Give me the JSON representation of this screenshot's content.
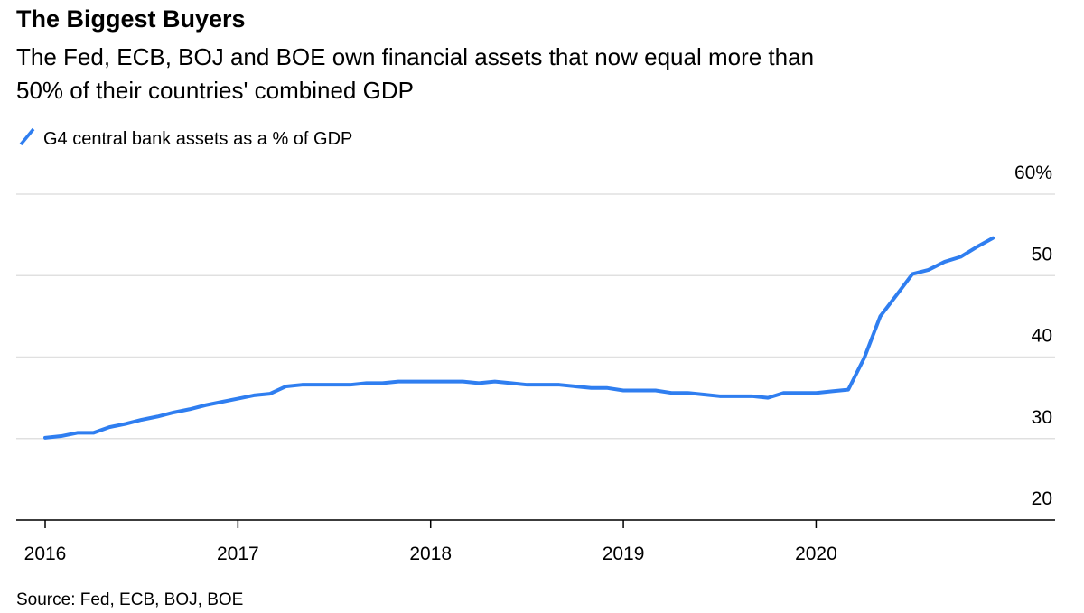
{
  "chart_data": {
    "type": "line",
    "title": "The Biggest Buyers",
    "subtitle": [
      "The Fed, ECB, BOJ and BOE own financial assets that now equal more than",
      "50% of their countries' combined GDP"
    ],
    "source": "Source: Fed, ECB, BOJ, BOE",
    "x": [
      2016,
      2016.083,
      2016.167,
      2016.25,
      2016.333,
      2016.417,
      2016.5,
      2016.583,
      2016.667,
      2016.75,
      2016.833,
      2016.917,
      2017,
      2017.083,
      2017.167,
      2017.25,
      2017.333,
      2017.417,
      2017.5,
      2017.583,
      2017.667,
      2017.75,
      2017.833,
      2017.917,
      2018,
      2018.083,
      2018.167,
      2018.25,
      2018.333,
      2018.417,
      2018.5,
      2018.583,
      2018.667,
      2018.75,
      2018.833,
      2018.917,
      2019,
      2019.083,
      2019.167,
      2019.25,
      2019.333,
      2019.417,
      2019.5,
      2019.583,
      2019.667,
      2019.75,
      2019.833,
      2019.917,
      2020,
      2020.083,
      2020.167,
      2020.25,
      2020.333,
      2020.417,
      2020.5,
      2020.583,
      2020.667,
      2020.75,
      2020.833,
      2020.917
    ],
    "series": [
      {
        "name": "G4 central bank assets as a % of GDP",
        "color": "#2f7ef0",
        "values": [
          30.1,
          30.3,
          30.7,
          30.7,
          31.4,
          31.8,
          32.3,
          32.7,
          33.2,
          33.6,
          34.1,
          34.5,
          34.9,
          35.3,
          35.5,
          36.4,
          36.6,
          36.6,
          36.6,
          36.6,
          36.8,
          36.8,
          37.0,
          37.0,
          37.0,
          37.0,
          37.0,
          36.8,
          37.0,
          36.8,
          36.6,
          36.6,
          36.6,
          36.4,
          36.2,
          36.2,
          35.9,
          35.9,
          35.9,
          35.6,
          35.6,
          35.4,
          35.2,
          35.2,
          35.2,
          35.0,
          35.6,
          35.6,
          35.6,
          35.8,
          36.0,
          39.9,
          45.0,
          47.6,
          50.2,
          50.7,
          51.7,
          52.3,
          53.5,
          54.6
        ]
      }
    ],
    "xlim": [
      2015.85,
      2021.24
    ],
    "xticks": [
      2016,
      2017,
      2018,
      2019,
      2020
    ],
    "ylim": [
      20,
      60
    ],
    "yticks": [
      20,
      30,
      40,
      50,
      {
        "value": 60,
        "label": "60%"
      }
    ],
    "grid": true
  }
}
